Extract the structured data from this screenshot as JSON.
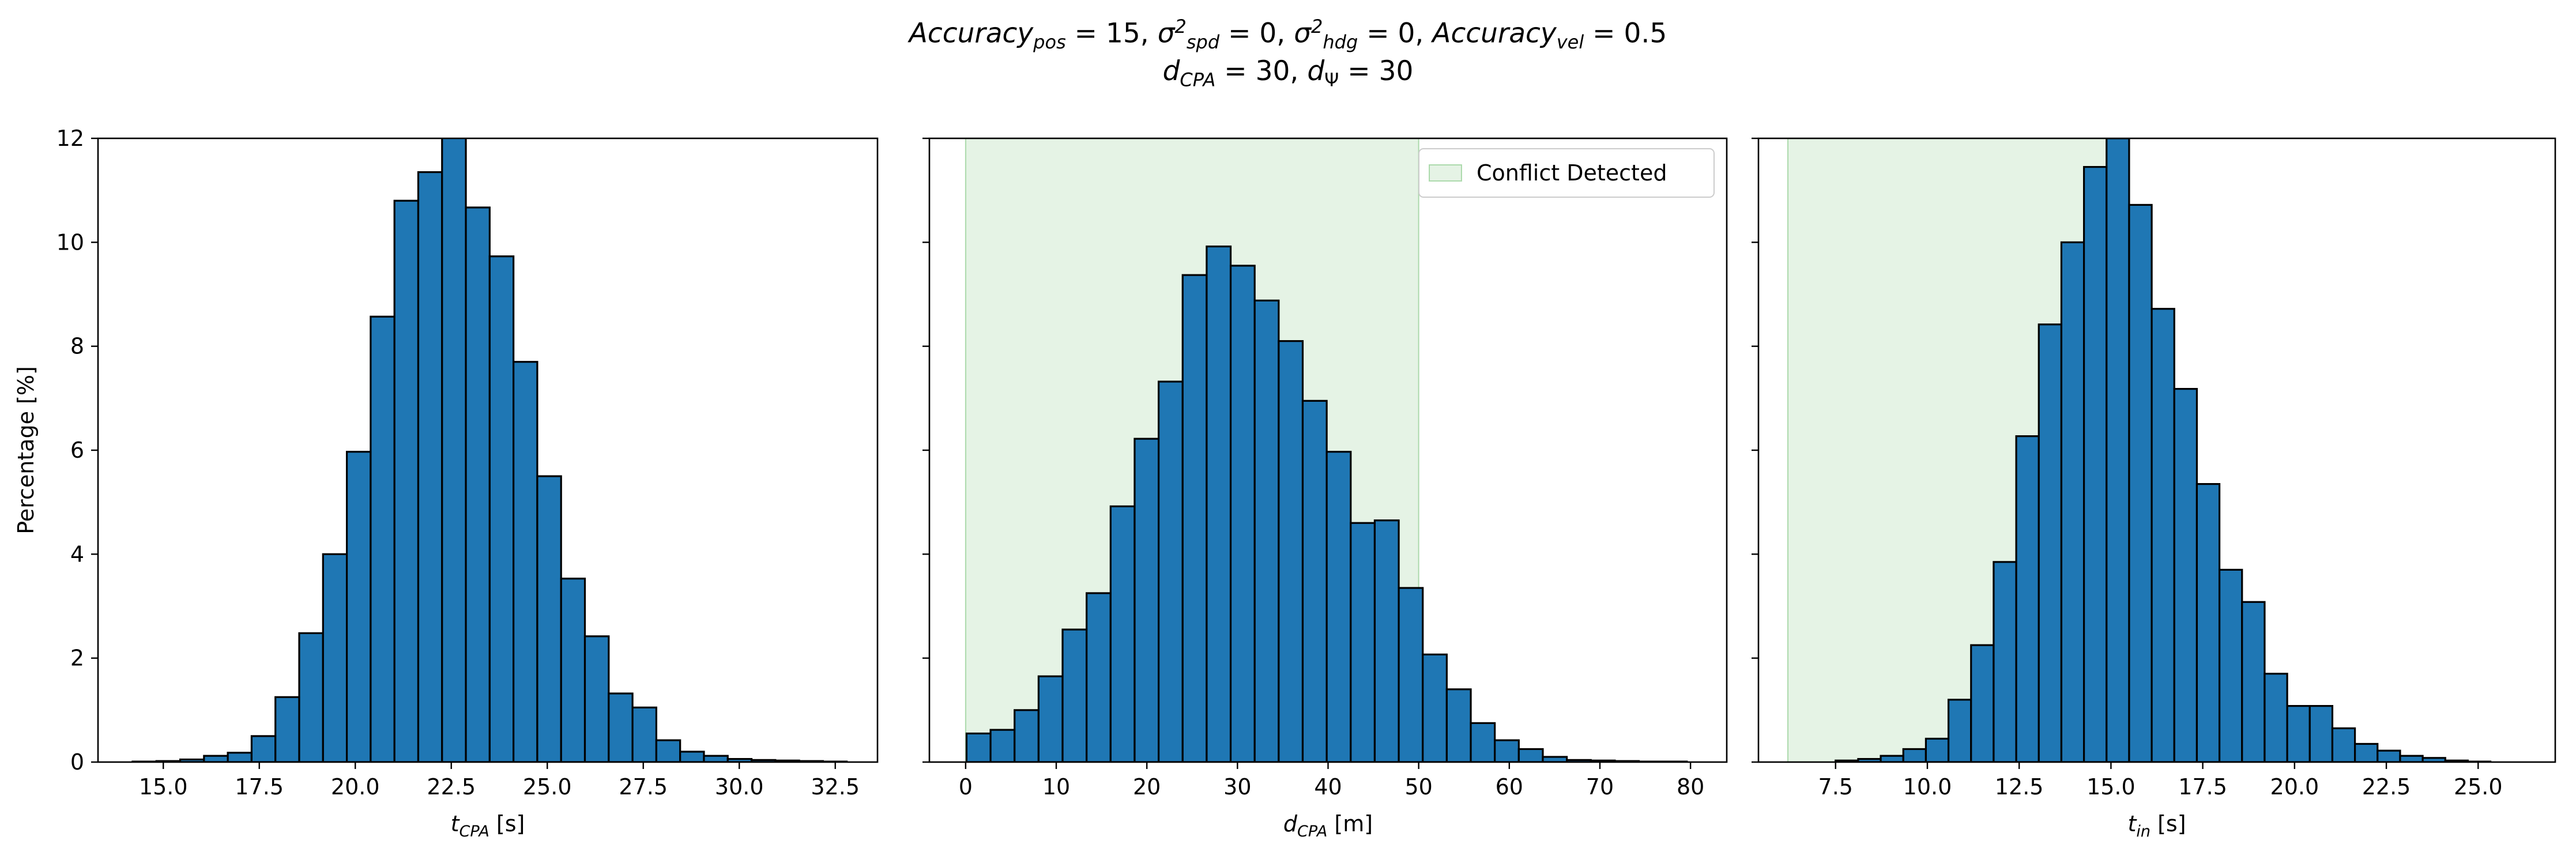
{
  "figure_title": {
    "line1": {
      "acc_pos": "Accuracy",
      "acc_pos_sub": "pos",
      "acc_pos_val": " = 15, ",
      "sigma_spd": "σ",
      "sigma_spd_sup": "2",
      "sigma_spd_sub": "spd",
      "sigma_spd_val": " = 0, ",
      "sigma_hdg": "σ",
      "sigma_hdg_sup": "2",
      "sigma_hdg_sub": "hdg",
      "sigma_hdg_val": " = 0, ",
      "acc_vel": "Accuracy",
      "acc_vel_sub": "vel",
      "acc_vel_val": " = 0.5"
    },
    "line2": {
      "d_cpa": "d",
      "d_cpa_sub": "CPA",
      "d_cpa_val": " = 30, ",
      "d_psi": "d",
      "d_psi_sub": "Ψ",
      "d_psi_val": " = 30"
    }
  },
  "colors": {
    "bar_fill": "#1f77b4",
    "bar_edge": "#000000",
    "shade": "#2ca02c",
    "shade_opacity": 0.12
  },
  "chart_data": [
    {
      "type": "bar",
      "subtype": "histogram",
      "xlabel": {
        "main": "t",
        "sub": "CPA",
        "unit": " [s]"
      },
      "ylabel": "Percentage [%]",
      "xlim": [
        13.3,
        33.6
      ],
      "ylim": [
        0,
        12
      ],
      "xticks": [
        "15.0",
        "17.5",
        "20.0",
        "22.5",
        "25.0",
        "27.5",
        "30.0",
        "32.5"
      ],
      "xtick_values": [
        15.0,
        17.5,
        20.0,
        22.5,
        25.0,
        27.5,
        30.0,
        32.5
      ],
      "yticks": [
        "0",
        "2",
        "4",
        "6",
        "8",
        "10",
        "12"
      ],
      "ytick_values": [
        0,
        2,
        4,
        6,
        8,
        10,
        12
      ],
      "bin_start": 14.2,
      "bin_width": 0.62,
      "values": [
        0.01,
        0.02,
        0.05,
        0.12,
        0.18,
        0.5,
        1.25,
        2.48,
        4.0,
        5.97,
        8.57,
        10.8,
        11.35,
        12.05,
        10.67,
        9.73,
        7.7,
        5.5,
        3.53,
        2.42,
        1.32,
        1.05,
        0.42,
        0.2,
        0.12,
        0.06,
        0.04,
        0.03,
        0.02,
        0.01
      ],
      "grid": false
    },
    {
      "type": "bar",
      "subtype": "histogram",
      "xlabel": {
        "main": "d",
        "sub": "CPA",
        "unit": " [m]"
      },
      "ylabel": "",
      "xlim": [
        -4,
        84
      ],
      "ylim": [
        0,
        12
      ],
      "xticks": [
        "0",
        "10",
        "20",
        "30",
        "40",
        "50",
        "60",
        "70",
        "80"
      ],
      "xtick_values": [
        0,
        10,
        20,
        30,
        40,
        50,
        60,
        70,
        80
      ],
      "yticks": [
        "0",
        "2",
        "4",
        "6",
        "8",
        "10",
        "12"
      ],
      "ytick_values": [
        0,
        2,
        4,
        6,
        8,
        10,
        12
      ],
      "bin_start": 0.1,
      "bin_width": 2.65,
      "values": [
        0.55,
        0.62,
        1.0,
        1.65,
        2.55,
        3.25,
        4.92,
        6.22,
        7.32,
        9.37,
        9.92,
        9.55,
        8.88,
        8.1,
        6.95,
        5.97,
        4.6,
        4.65,
        3.35,
        2.07,
        1.4,
        0.75,
        0.42,
        0.25,
        0.1,
        0.04,
        0.03,
        0.02,
        0.01,
        0.01
      ],
      "shaded_region": {
        "x0": 0,
        "x1": 50,
        "label": "Conflict Detected"
      },
      "legend": {
        "position": "upper right",
        "entries": [
          "Conflict Detected"
        ]
      },
      "grid": false
    },
    {
      "type": "bar",
      "subtype": "histogram",
      "xlabel": {
        "main": "t",
        "sub": "in",
        "unit": " [s]"
      },
      "ylabel": "",
      "xlim": [
        5.4,
        27.1
      ],
      "ylim": [
        0,
        12
      ],
      "xticks": [
        "7.5",
        "10.0",
        "12.5",
        "15.0",
        "17.5",
        "20.0",
        "22.5",
        "25.0"
      ],
      "xtick_values": [
        7.5,
        10.0,
        12.5,
        15.0,
        17.5,
        20.0,
        22.5,
        25.0
      ],
      "yticks": [
        "0",
        "2",
        "4",
        "6",
        "8",
        "10",
        "12"
      ],
      "ytick_values": [
        0,
        2,
        4,
        6,
        8,
        10,
        12
      ],
      "bin_start": 7.5,
      "bin_width": 0.615,
      "values": [
        0.03,
        0.06,
        0.12,
        0.25,
        0.45,
        1.2,
        2.25,
        3.85,
        6.27,
        8.42,
        10.0,
        11.45,
        12.0,
        10.72,
        8.72,
        7.18,
        5.35,
        3.7,
        3.08,
        1.7,
        1.08,
        1.08,
        0.65,
        0.35,
        0.22,
        0.12,
        0.08,
        0.03,
        0.01
      ],
      "shaded_region": {
        "x0": 6.2,
        "x1": 15.2,
        "label": ""
      },
      "grid": false
    }
  ]
}
